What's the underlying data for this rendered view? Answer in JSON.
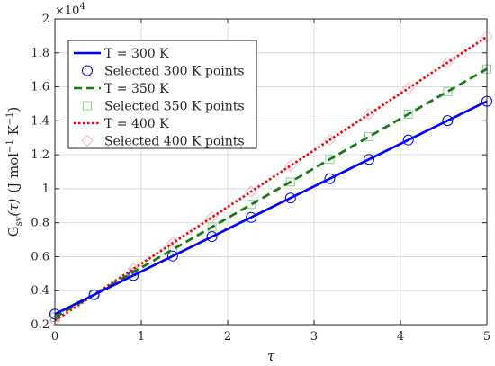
{
  "chart_data": {
    "type": "line",
    "xlabel": "τ",
    "ylabel": "G_sv(τ) (J mol⁻¹ K⁻¹)",
    "ylabel_parts": {
      "main": "G",
      "sub": "sv",
      "arg": "(τ)",
      "units_open": "(J mol",
      "units_exp1": "−1",
      "units_mid": " K",
      "units_exp2": "−1",
      "units_close": ")"
    },
    "y_exponent": {
      "base": "×10",
      "exp": "4"
    },
    "xlim": [
      0,
      5
    ],
    "ylim": [
      0.2,
      2
    ],
    "y_scale_factor": 10000,
    "x_ticks": [
      0,
      1,
      2,
      3,
      4,
      5
    ],
    "x_tick_labels": [
      "0",
      "1",
      "2",
      "3",
      "4",
      "5"
    ],
    "y_ticks": [
      0.2,
      0.4,
      0.6,
      0.8,
      1.0,
      1.2,
      1.4,
      1.6,
      1.8,
      2.0
    ],
    "y_tick_labels": [
      "0.2",
      "0.4",
      "0.6",
      "0.8",
      "1",
      "1.2",
      "1.4",
      "1.6",
      "1.8",
      "2"
    ],
    "grid": true,
    "legend_position": "top-left",
    "series": [
      {
        "name": "T = 300 K",
        "kind": "line",
        "style": "solid",
        "color": "#0000ff",
        "x": [
          0,
          5
        ],
        "y": [
          0.262,
          1.515
        ]
      },
      {
        "name": "Selected 300 K points",
        "kind": "marker",
        "marker": "circle",
        "color": "#0000ff",
        "x": [
          0,
          0.4545,
          0.9091,
          1.3636,
          1.8182,
          2.2727,
          2.7273,
          3.1818,
          3.6364,
          4.0909,
          4.5455,
          5.0
        ],
        "y": [
          0.262,
          0.376,
          0.49,
          0.604,
          0.718,
          0.831,
          0.945,
          1.059,
          1.173,
          1.287,
          1.401,
          1.515
        ]
      },
      {
        "name": "T = 350 K",
        "kind": "line",
        "style": "dashed",
        "color": "#1a7a1a",
        "x": [
          0,
          5
        ],
        "y": [
          0.243,
          1.705
        ]
      },
      {
        "name": "Selected 350 K points",
        "kind": "marker",
        "marker": "square",
        "color": "#8fd18f",
        "x": [
          0,
          0.4545,
          0.9091,
          1.3636,
          1.8182,
          2.2727,
          2.7273,
          3.1818,
          3.6364,
          4.0909,
          4.5455,
          5.0
        ],
        "y": [
          0.243,
          0.376,
          0.509,
          0.642,
          0.775,
          0.908,
          1.04,
          1.173,
          1.306,
          1.439,
          1.572,
          1.705
        ]
      },
      {
        "name": "T = 400 K",
        "kind": "line",
        "style": "dotted",
        "color": "#ff0000",
        "x": [
          0,
          5
        ],
        "y": [
          0.224,
          1.895
        ]
      },
      {
        "name": "Selected 400 K points",
        "kind": "marker",
        "marker": "diamond",
        "color": "#f2b8cc",
        "x": [
          0,
          0.4545,
          0.9091,
          1.3636,
          1.8182,
          2.2727,
          2.7273,
          3.1818,
          3.6364,
          4.0909,
          4.5455,
          5.0
        ],
        "y": [
          0.224,
          0.376,
          0.528,
          0.68,
          0.832,
          0.983,
          1.135,
          1.287,
          1.439,
          1.591,
          1.743,
          1.895
        ]
      }
    ]
  }
}
